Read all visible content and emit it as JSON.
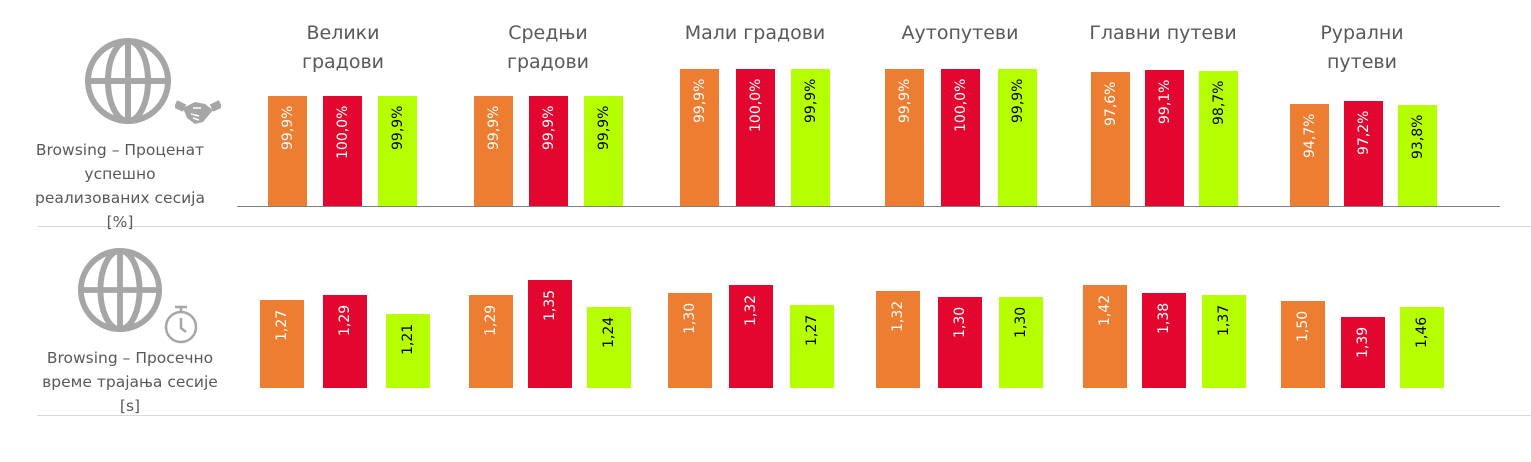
{
  "colors": {
    "orange": "#ED7D31",
    "red": "#E3072F",
    "green": "#B5FF00",
    "axis": "#808080",
    "divider": "#D9D9D9",
    "icon": "#A6A6A6"
  },
  "icons": [
    "globe-icon",
    "handshake-icon",
    "stopwatch-icon"
  ],
  "rows": [
    {
      "label_lines": [
        "Browsing – Проценат",
        "успешно",
        "реализованих сесија",
        "[%]"
      ]
    },
    {
      "label_lines": [
        "Browsing – Просечно",
        "време трајања сесије",
        "[s]"
      ]
    }
  ],
  "chart_data": [
    {
      "type": "bar",
      "categories": [
        "Велики градови",
        "Средњи градови",
        "Мали градови",
        "Аутопутеви",
        "Главни путеви",
        "Рурални путеви"
      ],
      "category_lines": [
        [
          "Велики",
          "градови"
        ],
        [
          "Средњи",
          "градови"
        ],
        [
          "Мали градови"
        ],
        [
          "Аутопутеви"
        ],
        [
          "Главни путеви"
        ],
        [
          "Рурални",
          "путеви"
        ]
      ],
      "unit": "%",
      "series_colors": [
        "#ED7D31",
        "#E3072F",
        "#B5FF00"
      ],
      "values": [
        [
          99.9,
          100.0,
          99.9
        ],
        [
          99.9,
          99.9,
          99.9
        ],
        [
          99.9,
          100.0,
          99.9
        ],
        [
          99.9,
          100.0,
          99.9
        ],
        [
          97.6,
          99.1,
          98.7
        ],
        [
          94.7,
          97.2,
          93.8
        ]
      ],
      "labels": [
        [
          "99,9%",
          "100,0%",
          "99,9%"
        ],
        [
          "99,9%",
          "99,9%",
          "99,9%"
        ],
        [
          "99,9%",
          "100,0%",
          "99,9%"
        ],
        [
          "99,9%",
          "100,0%",
          "99,9%"
        ],
        [
          "97,6%",
          "99,1%",
          "98,7%"
        ],
        [
          "94,7%",
          "97,2%",
          "93,8%"
        ]
      ]
    },
    {
      "type": "bar",
      "unit": "s",
      "series_colors": [
        "#ED7D31",
        "#E3072F",
        "#B5FF00"
      ],
      "values": [
        [
          1.27,
          1.29,
          1.21
        ],
        [
          1.29,
          1.35,
          1.24
        ],
        [
          1.3,
          1.32,
          1.27
        ],
        [
          1.32,
          1.3,
          1.3
        ],
        [
          1.42,
          1.38,
          1.37
        ],
        [
          1.5,
          1.39,
          1.46
        ]
      ],
      "labels": [
        [
          "1,27",
          "1,29",
          "1,21"
        ],
        [
          "1,29",
          "1,35",
          "1,24"
        ],
        [
          "1,30",
          "1,32",
          "1,27"
        ],
        [
          "1,32",
          "1,30",
          "1,30"
        ],
        [
          "1,42",
          "1,38",
          "1,37"
        ],
        [
          "1,50",
          "1,39",
          "1,46"
        ]
      ]
    }
  ]
}
